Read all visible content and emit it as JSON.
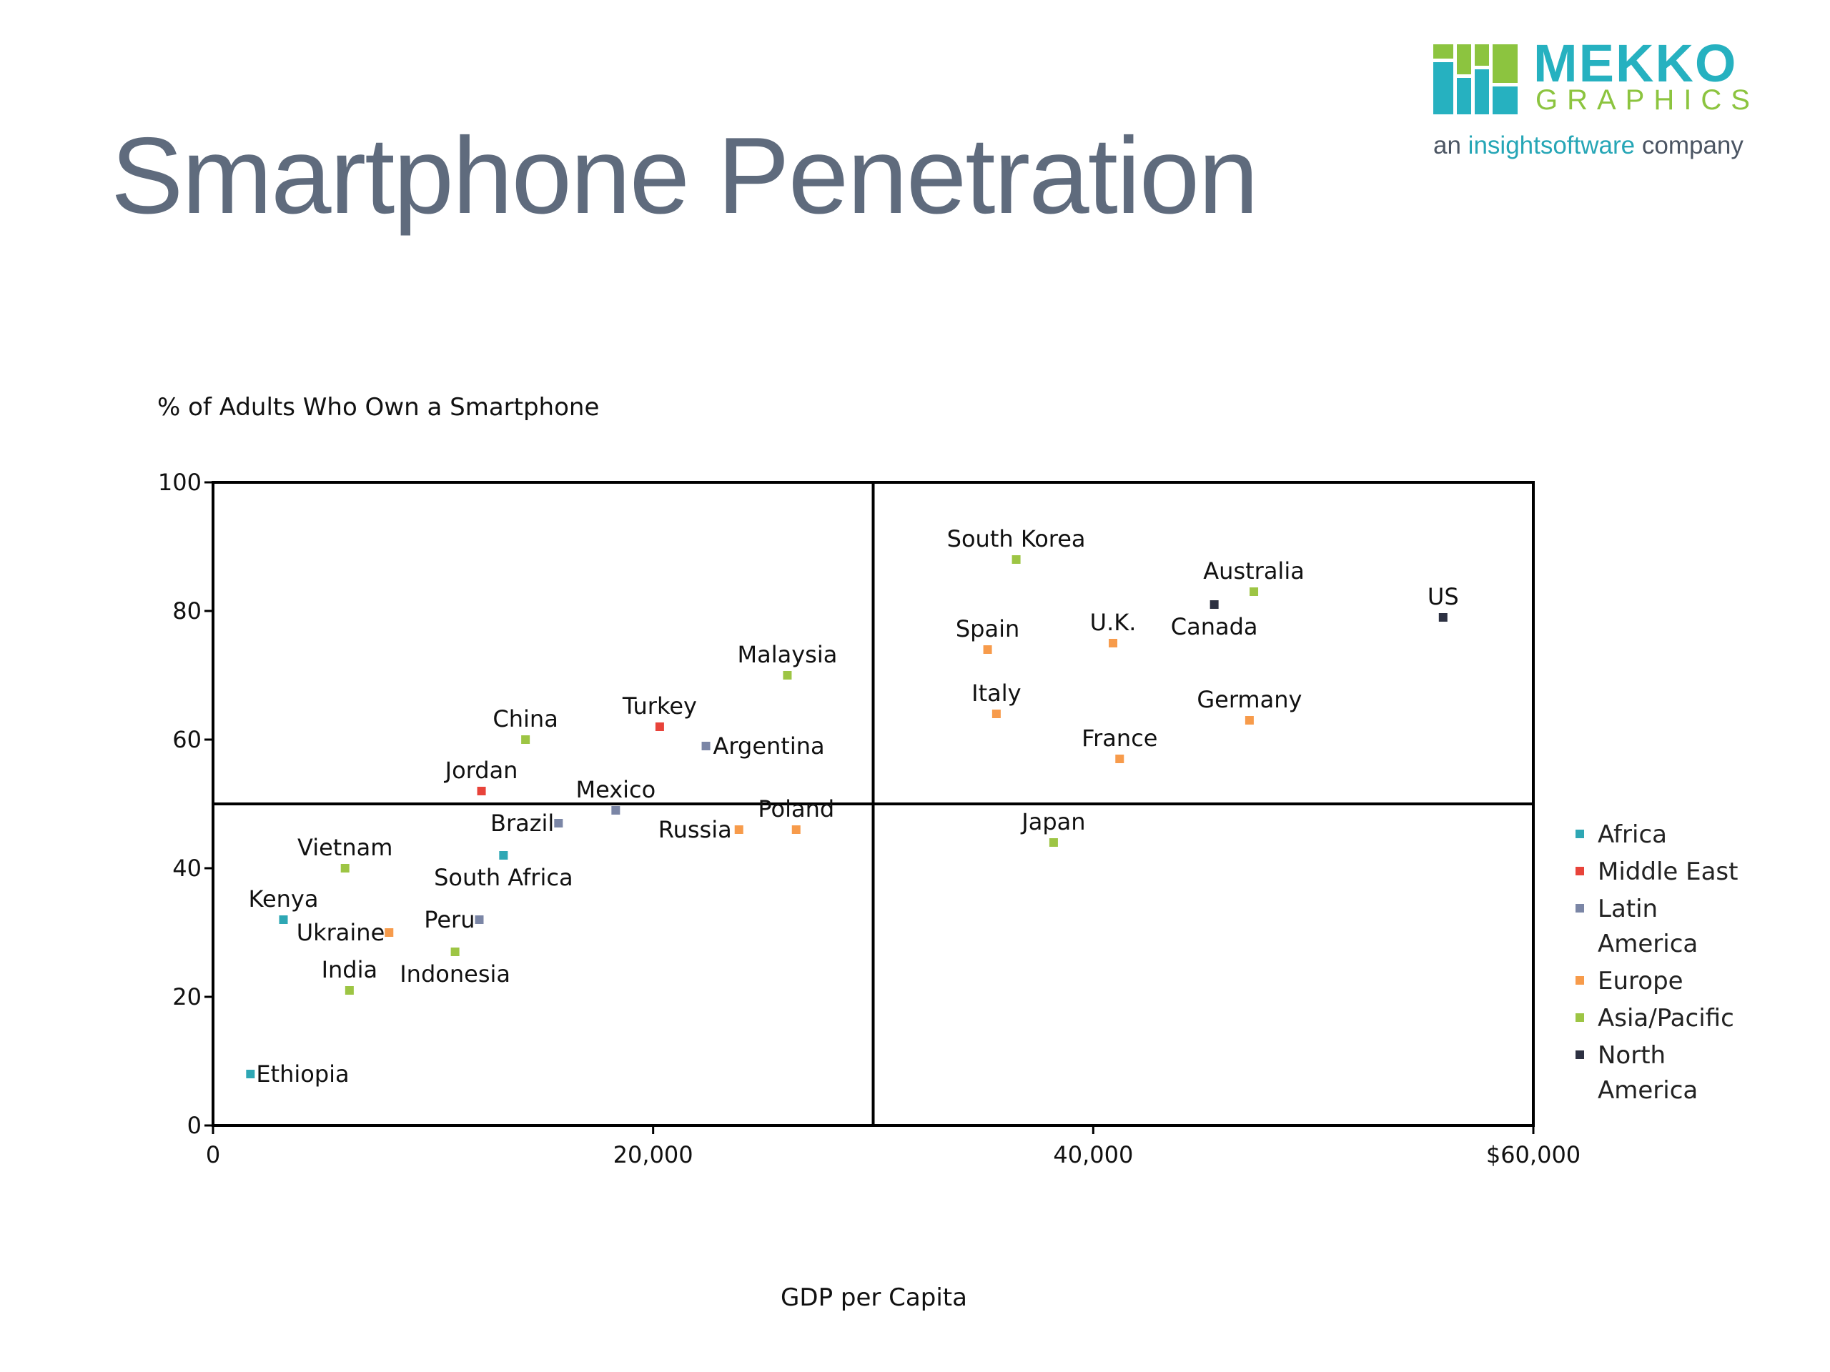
{
  "page_title": "Smartphone Penetration",
  "brand": {
    "word1": "MEKKO",
    "word2": "GRAPHICS",
    "tagline_prefix": "an",
    "tagline_brand": "insightsoftware",
    "tagline_suffix": "company",
    "colors": {
      "teal": "#26b1c0",
      "green": "#8cc43f",
      "gray": "#4b5563"
    }
  },
  "chart_data": {
    "type": "scatter",
    "ylabel": "% of Adults Who Own a Smartphone",
    "xlabel": "GDP per Capita",
    "xlim": [
      0,
      60000
    ],
    "ylim": [
      0,
      100
    ],
    "x_ticks": [
      {
        "value": 0,
        "label": "0"
      },
      {
        "value": 20000,
        "label": "20,000"
      },
      {
        "value": 40000,
        "label": "40,000"
      },
      {
        "value": 60000,
        "label": "$60,000"
      }
    ],
    "y_ticks": [
      {
        "value": 0,
        "label": "0"
      },
      {
        "value": 20,
        "label": "20"
      },
      {
        "value": 40,
        "label": "40"
      },
      {
        "value": 60,
        "label": "60"
      },
      {
        "value": 80,
        "label": "80"
      },
      {
        "value": 100,
        "label": "100"
      }
    ],
    "quadrant_dividers": {
      "x": 30000,
      "y": 50
    },
    "grid": false,
    "legend_position": "right",
    "series": [
      {
        "name": "Africa",
        "color": "#2ea7b4",
        "legend_lines": [
          "Africa"
        ],
        "points": [
          {
            "label": "South Africa",
            "x": 13200,
            "y": 42
          },
          {
            "label": "Kenya",
            "x": 3200,
            "y": 32
          },
          {
            "label": "Ethiopia",
            "x": 1700,
            "y": 8
          }
        ]
      },
      {
        "name": "Middle East",
        "color": "#e8433a",
        "legend_lines": [
          "Middle East"
        ],
        "points": [
          {
            "label": "Turkey",
            "x": 20300,
            "y": 62
          },
          {
            "label": "Jordan",
            "x": 12200,
            "y": 52
          }
        ]
      },
      {
        "name": "Latin America",
        "color": "#7b86a6",
        "legend_lines": [
          "Latin",
          "America"
        ],
        "points": [
          {
            "label": "Argentina",
            "x": 22400,
            "y": 59
          },
          {
            "label": "Mexico",
            "x": 18300,
            "y": 49
          },
          {
            "label": "Brazil",
            "x": 15700,
            "y": 47
          },
          {
            "label": "Peru",
            "x": 12100,
            "y": 32
          }
        ]
      },
      {
        "name": "Europe",
        "color": "#f79b4b",
        "legend_lines": [
          "Europe"
        ],
        "points": [
          {
            "label": "Spain",
            "x": 35200,
            "y": 74
          },
          {
            "label": "U.K.",
            "x": 40900,
            "y": 75
          },
          {
            "label": "Italy",
            "x": 35600,
            "y": 64
          },
          {
            "label": "Germany",
            "x": 47100,
            "y": 63
          },
          {
            "label": "France",
            "x": 41200,
            "y": 57
          },
          {
            "label": "Poland",
            "x": 26500,
            "y": 46
          },
          {
            "label": "Russia",
            "x": 23900,
            "y": 46
          },
          {
            "label": "Ukraine",
            "x": 8000,
            "y": 30
          }
        ]
      },
      {
        "name": "Asia/Pacific",
        "color": "#9dc544",
        "legend_lines": [
          "Asia/Pacific"
        ],
        "points": [
          {
            "label": "South Korea",
            "x": 36500,
            "y": 88
          },
          {
            "label": "Australia",
            "x": 47300,
            "y": 83
          },
          {
            "label": "Malaysia",
            "x": 26100,
            "y": 70
          },
          {
            "label": "China",
            "x": 14200,
            "y": 60
          },
          {
            "label": "Japan",
            "x": 38200,
            "y": 44
          },
          {
            "label": "Vietnam",
            "x": 6000,
            "y": 40
          },
          {
            "label": "Indonesia",
            "x": 11000,
            "y": 27
          },
          {
            "label": "India",
            "x": 6200,
            "y": 21
          }
        ]
      },
      {
        "name": "North America",
        "color": "#2d3142",
        "legend_lines": [
          "North",
          "America"
        ],
        "points": [
          {
            "label": "US",
            "x": 55900,
            "y": 79
          },
          {
            "label": "Canada",
            "x": 45500,
            "y": 81
          }
        ]
      }
    ]
  }
}
